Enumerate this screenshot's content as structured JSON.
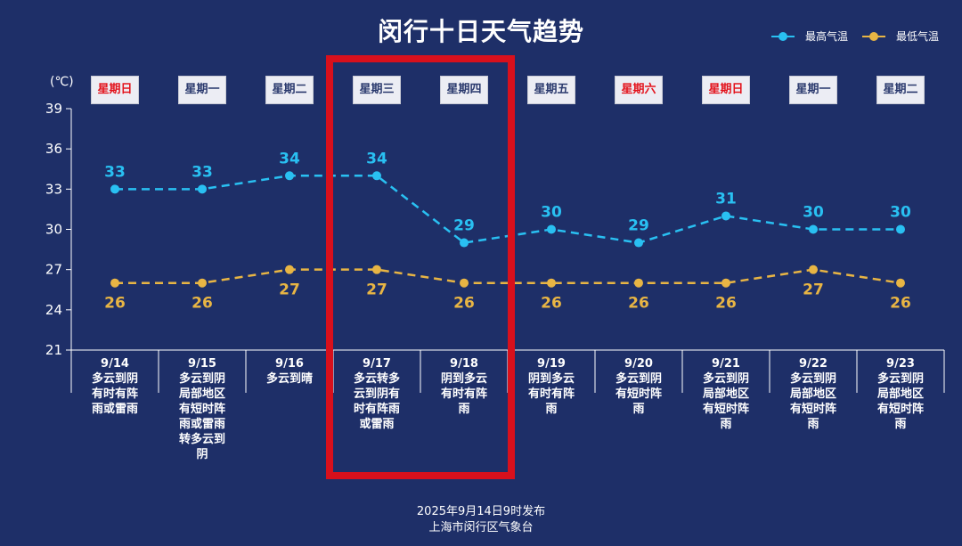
{
  "title": "闵行十日天气趋势",
  "legend": {
    "high": "最高气温",
    "low": "最低气温"
  },
  "colors": {
    "background": "#1e2f68",
    "high": "#29c0f2",
    "low": "#e8b544",
    "weekend": "#e3141d",
    "weekday": "#2b3a6e",
    "highlight": "#d8101c",
    "axis": "#ffffff"
  },
  "unit_label": "(℃)",
  "footer": {
    "line1": "2025年9月14日9时发布",
    "line2": "上海市闵行区气象台"
  },
  "chart_data": {
    "type": "line",
    "title": "闵行十日天气趋势",
    "ylabel": "(℃)",
    "ylim": [
      21,
      39
    ],
    "yticks": [
      21,
      24,
      27,
      30,
      33,
      36,
      39
    ],
    "categories": [
      "9/14",
      "9/15",
      "9/16",
      "9/17",
      "9/18",
      "9/19",
      "9/20",
      "9/21",
      "9/22",
      "9/23"
    ],
    "weekdays": [
      "星期日",
      "星期一",
      "星期二",
      "星期三",
      "星期四",
      "星期五",
      "星期六",
      "星期日",
      "星期一",
      "星期二"
    ],
    "weekend": [
      true,
      false,
      false,
      false,
      false,
      false,
      true,
      true,
      false,
      false
    ],
    "weather": [
      "多云到阴有时有阵雨或雷雨",
      "多云到阴局部地区有短时阵雨或雷雨转多云到阴",
      "多云到晴",
      "多云转多云到阴有时有阵雨或雷雨",
      "阴到多云有时有阵雨",
      "阴到多云有时有阵雨",
      "多云到阴有短时阵雨",
      "多云到阴局部地区有短时阵雨",
      "多云到阴局部地区有短时阵雨",
      "多云到阴局部地区有短时阵雨"
    ],
    "series": [
      {
        "name": "最高气温",
        "values": [
          33,
          33,
          34,
          34,
          29,
          30,
          29,
          31,
          30,
          30
        ]
      },
      {
        "name": "最低气温",
        "values": [
          26,
          26,
          27,
          27,
          26,
          26,
          26,
          26,
          27,
          26
        ]
      }
    ],
    "highlight_categories": [
      "9/17",
      "9/18"
    ],
    "legend_position": "top-right",
    "grid": false
  }
}
